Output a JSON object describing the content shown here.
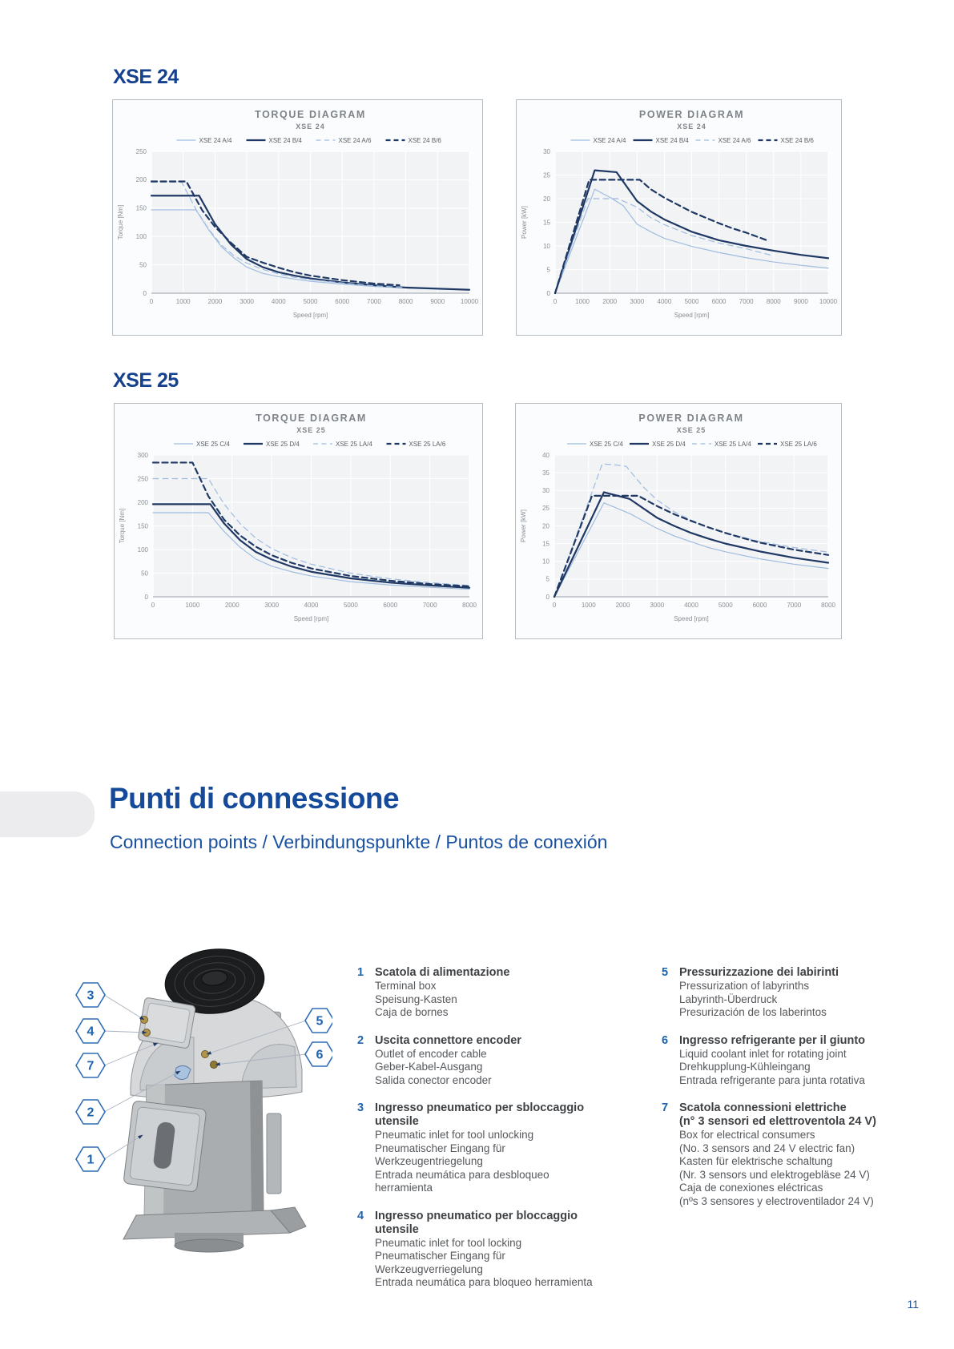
{
  "colors": {
    "accent_blue": "#154a9b",
    "navy": "#1f3864",
    "light_blue": "#9fbcdf",
    "chart_title_gray": "#7e8389",
    "legend_number_blue": "#1d63ad"
  },
  "headings": {
    "xse24": "XSE 24",
    "xse25": "XSE 25"
  },
  "page": {
    "number": "11"
  },
  "connection": {
    "title": "Punti di connessione",
    "subtitle": "Connection points / Verbindungspunkte / Puntos de conexión",
    "callouts": [
      "3",
      "4",
      "7",
      "2",
      "1",
      "5",
      "6"
    ],
    "items": [
      {
        "num": "1",
        "title": "Scatola di alimentazione",
        "lines": [
          "Terminal box",
          "Speisung-Kasten",
          "Caja de bornes"
        ]
      },
      {
        "num": "2",
        "title": "Uscita connettore encoder",
        "lines": [
          "Outlet of encoder cable",
          "Geber-Kabel-Ausgang",
          "Salida conector encoder"
        ]
      },
      {
        "num": "3",
        "title": "Ingresso pneumatico per sbloccaggio utensile",
        "lines": [
          "Pneumatic inlet for tool unlocking",
          "Pneumatischer Eingang für Werkzeugentriegelung",
          "Entrada neumática para desbloqueo herramienta"
        ]
      },
      {
        "num": "4",
        "title": "Ingresso pneumatico per bloccaggio utensile",
        "lines": [
          "Pneumatic inlet for tool locking",
          "Pneumatischer Eingang für Werkzeugverriegelung",
          "Entrada neumática para bloqueo herramienta"
        ]
      },
      {
        "num": "5",
        "title": "Pressurizzazione dei labirinti",
        "lines": [
          "Pressurization of labyrinths",
          "Labyrinth-Überdruck",
          "Presurización de los laberintos"
        ]
      },
      {
        "num": "6",
        "title": "Ingresso refrigerante per il giunto",
        "lines": [
          "Liquid coolant inlet for rotating joint",
          "Drehkupplung-Kühleingang",
          "Entrada refrigerante para junta rotativa"
        ]
      },
      {
        "num": "7",
        "title": "Scatola connessioni elettriche",
        "title2": "(n° 3 sensori ed elettroventola 24 V)",
        "lines": [
          "Box for electrical consumers",
          "(No. 3 sensors and 24 V electric fan)",
          "Kasten für elektrische schaltung",
          "(Nr. 3 sensors und elektrogebläse 24 V)",
          "Caja de conexiones eléctricas",
          "(nºs 3 sensores y electroventilador 24 V)"
        ]
      }
    ]
  },
  "chart_data": [
    {
      "type": "line",
      "title": "TORQUE DIAGRAM",
      "subtitle": "XSE 24",
      "xlabel": "Speed [rpm]",
      "ylabel": "Torque [Nm]",
      "xlim": [
        0,
        10000
      ],
      "xstep": 1000,
      "ylim": [
        0,
        250
      ],
      "ystep": 50,
      "grid": true,
      "legend_position": "top",
      "series": [
        {
          "name": "XSE 24 A/4",
          "color": "#9fbcdf",
          "dash": false,
          "weight": 1.2,
          "points": [
            [
              0,
              147
            ],
            [
              1400,
              147
            ],
            [
              1800,
              112
            ],
            [
              2200,
              82
            ],
            [
              2600,
              62
            ],
            [
              3000,
              46
            ],
            [
              3500,
              35
            ],
            [
              4000,
              29
            ],
            [
              4500,
              25
            ],
            [
              5000,
              21
            ],
            [
              6000,
              16
            ],
            [
              7000,
              12
            ],
            [
              8000,
              9
            ],
            [
              9000,
              7
            ],
            [
              10000,
              6
            ]
          ]
        },
        {
          "name": "XSE 24 B/4",
          "color": "#1f3864",
          "dash": false,
          "weight": 2.2,
          "points": [
            [
              0,
              172
            ],
            [
              1500,
              172
            ],
            [
              2000,
              122
            ],
            [
              2500,
              86
            ],
            [
              3000,
              60
            ],
            [
              3500,
              46
            ],
            [
              4000,
              37
            ],
            [
              4500,
              31
            ],
            [
              5000,
              26
            ],
            [
              6000,
              19
            ],
            [
              7000,
              14
            ],
            [
              8000,
              10
            ],
            [
              9000,
              8
            ],
            [
              10000,
              6
            ]
          ]
        },
        {
          "name": "XSE 24 A/6",
          "color": "#9fbcdf",
          "dash": true,
          "weight": 1.2,
          "points": [
            [
              0,
              196
            ],
            [
              950,
              196
            ],
            [
              1400,
              148
            ],
            [
              1800,
              113
            ],
            [
              2200,
              85
            ],
            [
              2600,
              66
            ],
            [
              3000,
              53
            ],
            [
              3500,
              42
            ],
            [
              4000,
              34
            ],
            [
              4500,
              28
            ],
            [
              5000,
              24
            ],
            [
              6000,
              18
            ],
            [
              7000,
              13
            ],
            [
              8000,
              10
            ]
          ]
        },
        {
          "name": "XSE 24 B/6",
          "color": "#1f3864",
          "dash": true,
          "weight": 2.2,
          "points": [
            [
              0,
              197
            ],
            [
              1100,
              197
            ],
            [
              1600,
              146
            ],
            [
              2000,
              117
            ],
            [
              2500,
              89
            ],
            [
              3000,
              64
            ],
            [
              3500,
              54
            ],
            [
              4000,
              45
            ],
            [
              4500,
              37
            ],
            [
              5000,
              31
            ],
            [
              6000,
              23
            ],
            [
              7000,
              17
            ],
            [
              7800,
              14
            ]
          ]
        }
      ]
    },
    {
      "type": "line",
      "title": "POWER DIAGRAM",
      "subtitle": "XSE 24",
      "xlabel": "Speed [rpm]",
      "ylabel": "Power [kW]",
      "xlim": [
        0,
        10000
      ],
      "xstep": 1000,
      "ylim": [
        0,
        30
      ],
      "ystep": 5,
      "grid": true,
      "legend_position": "top",
      "series": [
        {
          "name": "XSE 24 A/4",
          "color": "#9fbcdf",
          "dash": false,
          "weight": 1.2,
          "points": [
            [
              0,
              0
            ],
            [
              1450,
              22
            ],
            [
              2000,
              20.3
            ],
            [
              2500,
              18.5
            ],
            [
              3000,
              14.6
            ],
            [
              3500,
              13
            ],
            [
              4000,
              11.6
            ],
            [
              5000,
              9.9
            ],
            [
              6000,
              8.6
            ],
            [
              7000,
              7.5
            ],
            [
              8000,
              6.6
            ],
            [
              9000,
              5.9
            ],
            [
              10000,
              5.3
            ]
          ]
        },
        {
          "name": "XSE 24 B/4",
          "color": "#1f3864",
          "dash": false,
          "weight": 2.2,
          "points": [
            [
              0,
              0
            ],
            [
              1450,
              26
            ],
            [
              2250,
              25.6
            ],
            [
              3000,
              19.5
            ],
            [
              3500,
              17.3
            ],
            [
              4000,
              15.6
            ],
            [
              5000,
              13
            ],
            [
              6000,
              11.2
            ],
            [
              7000,
              10
            ],
            [
              8000,
              9
            ],
            [
              9000,
              8.1
            ],
            [
              10000,
              7.4
            ]
          ]
        },
        {
          "name": "XSE 24 A/6",
          "color": "#9fbcdf",
          "dash": true,
          "weight": 1.2,
          "points": [
            [
              0,
              0
            ],
            [
              1200,
              20
            ],
            [
              2300,
              20
            ],
            [
              3000,
              18.2
            ],
            [
              3500,
              16
            ],
            [
              4000,
              14.5
            ],
            [
              5000,
              12.2
            ],
            [
              6000,
              10.6
            ],
            [
              7000,
              9.4
            ],
            [
              8000,
              7.9
            ]
          ]
        },
        {
          "name": "XSE 24 B/6",
          "color": "#1f3864",
          "dash": true,
          "weight": 2.2,
          "points": [
            [
              0,
              0
            ],
            [
              1250,
              24
            ],
            [
              3100,
              24
            ],
            [
              3500,
              22
            ],
            [
              4000,
              20.2
            ],
            [
              4500,
              18.7
            ],
            [
              5000,
              17.2
            ],
            [
              5500,
              16
            ],
            [
              6000,
              14.8
            ],
            [
              6500,
              13.7
            ],
            [
              7000,
              12.8
            ],
            [
              7800,
              11.1
            ]
          ]
        }
      ]
    },
    {
      "type": "line",
      "title": "TORQUE DIAGRAM",
      "subtitle": "XSE 25",
      "xlabel": "Speed [rpm]",
      "ylabel": "Torque [Nm]",
      "xlim": [
        0,
        8000
      ],
      "xstep": 1000,
      "ylim": [
        0,
        300
      ],
      "ystep": 50,
      "grid": true,
      "legend_position": "top",
      "series": [
        {
          "name": "XSE 25 C/4",
          "color": "#9fbcdf",
          "dash": false,
          "weight": 1.2,
          "points": [
            [
              0,
              178
            ],
            [
              1400,
              178
            ],
            [
              1800,
              138
            ],
            [
              2200,
              105
            ],
            [
              2600,
              80
            ],
            [
              3000,
              65
            ],
            [
              3500,
              53
            ],
            [
              4000,
              44
            ],
            [
              5000,
              32
            ],
            [
              6000,
              25
            ],
            [
              7000,
              20
            ],
            [
              8000,
              16
            ]
          ]
        },
        {
          "name": "XSE 25 D/4",
          "color": "#1f3864",
          "dash": false,
          "weight": 2.2,
          "points": [
            [
              0,
              196
            ],
            [
              1450,
              196
            ],
            [
              1800,
              155
            ],
            [
              2200,
              120
            ],
            [
              2600,
              95
            ],
            [
              3000,
              79
            ],
            [
              3500,
              64
            ],
            [
              4000,
              53
            ],
            [
              5000,
              39
            ],
            [
              6000,
              30
            ],
            [
              7000,
              24
            ],
            [
              8000,
              19
            ]
          ]
        },
        {
          "name": "XSE 25 LA/4",
          "color": "#9fbcdf",
          "dash": true,
          "weight": 1.2,
          "points": [
            [
              0,
              250
            ],
            [
              1400,
              250
            ],
            [
              1800,
              196
            ],
            [
              2200,
              155
            ],
            [
              2600,
              124
            ],
            [
              3000,
              102
            ],
            [
              3500,
              83
            ],
            [
              4000,
              69
            ],
            [
              5000,
              50
            ],
            [
              6000,
              38
            ],
            [
              7000,
              30
            ],
            [
              8000,
              24
            ]
          ]
        },
        {
          "name": "XSE 25 LA/6",
          "color": "#1f3864",
          "dash": true,
          "weight": 2.2,
          "points": [
            [
              0,
              284
            ],
            [
              1000,
              284
            ],
            [
              1400,
              213
            ],
            [
              1800,
              163
            ],
            [
              2200,
              130
            ],
            [
              2600,
              106
            ],
            [
              3000,
              88
            ],
            [
              3500,
              72
            ],
            [
              4000,
              60
            ],
            [
              5000,
              44
            ],
            [
              6000,
              34
            ],
            [
              7000,
              27
            ],
            [
              8000,
              22
            ]
          ]
        }
      ]
    },
    {
      "type": "line",
      "title": "POWER DIAGRAM",
      "subtitle": "XSE 25",
      "xlabel": "Speed [rpm]",
      "ylabel": "Power [kW]",
      "xlim": [
        0,
        8000
      ],
      "xstep": 1000,
      "ylim": [
        0,
        40
      ],
      "ystep": 5,
      "grid": true,
      "legend_position": "top",
      "series": [
        {
          "name": "XSE 25 C/4",
          "color": "#9fbcdf",
          "dash": false,
          "weight": 1.2,
          "points": [
            [
              0,
              0
            ],
            [
              1450,
              26.5
            ],
            [
              2200,
              23.5
            ],
            [
              3000,
              19.3
            ],
            [
              3500,
              17.2
            ],
            [
              4000,
              15.5
            ],
            [
              4500,
              13.9
            ],
            [
              5000,
              12.7
            ],
            [
              6000,
              10.7
            ],
            [
              7000,
              9.2
            ],
            [
              8000,
              8
            ]
          ]
        },
        {
          "name": "XSE 25 D/4",
          "color": "#1f3864",
          "dash": false,
          "weight": 2.2,
          "points": [
            [
              0,
              0
            ],
            [
              1450,
              29.5
            ],
            [
              2200,
              27.6
            ],
            [
              3000,
              22.3
            ],
            [
              3500,
              20
            ],
            [
              4000,
              18
            ],
            [
              4500,
              16.4
            ],
            [
              5000,
              15
            ],
            [
              6000,
              12.8
            ],
            [
              7000,
              11
            ],
            [
              8000,
              9.6
            ]
          ]
        },
        {
          "name": "XSE 25 LA/4",
          "color": "#9fbcdf",
          "dash": true,
          "weight": 1.2,
          "points": [
            [
              0,
              0
            ],
            [
              1400,
              37.5
            ],
            [
              1800,
              37.2
            ],
            [
              2100,
              36.8
            ],
            [
              2600,
              31
            ],
            [
              3000,
              27.3
            ],
            [
              3500,
              24
            ],
            [
              4000,
              21.6
            ],
            [
              4500,
              19.6
            ],
            [
              5000,
              18
            ],
            [
              6000,
              15.6
            ],
            [
              7000,
              13.9
            ],
            [
              8000,
              12.6
            ]
          ]
        },
        {
          "name": "XSE 25 LA/6",
          "color": "#1f3864",
          "dash": true,
          "weight": 2.2,
          "points": [
            [
              0,
              0
            ],
            [
              1100,
              28.5
            ],
            [
              2450,
              28.5
            ],
            [
              3000,
              25.6
            ],
            [
              3500,
              23.3
            ],
            [
              4000,
              21.4
            ],
            [
              4500,
              19.6
            ],
            [
              5000,
              18
            ],
            [
              5500,
              16.6
            ],
            [
              6000,
              15.3
            ],
            [
              7000,
              13.3
            ],
            [
              8000,
              11.8
            ]
          ]
        }
      ]
    }
  ]
}
